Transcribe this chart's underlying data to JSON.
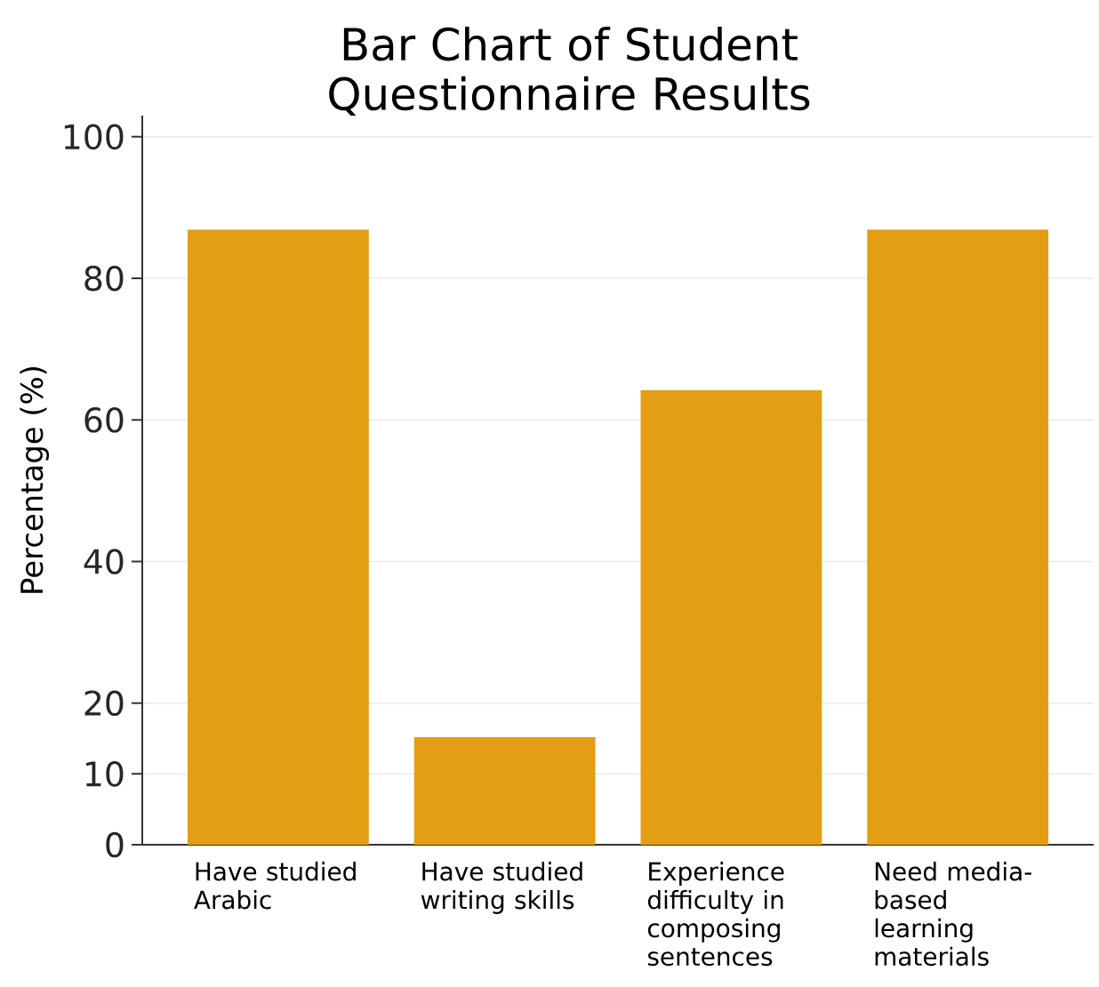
{
  "chart_data": {
    "type": "bar",
    "title": "Bar Chart of Student Questionnaire Results",
    "ylabel": "Percentage (%)",
    "categories": [
      "Have studied Arabic",
      "Have studied writing skills",
      "Experience difficulty in composing sentences",
      "Need media-based learning materials"
    ],
    "values": [
      86.9,
      15.2,
      64.2,
      86.9
    ],
    "color": "#e39e14",
    "ylim": [
      0,
      103
    ],
    "yticks": [
      0,
      10,
      20,
      40,
      60,
      80,
      100
    ],
    "grid": "y"
  }
}
